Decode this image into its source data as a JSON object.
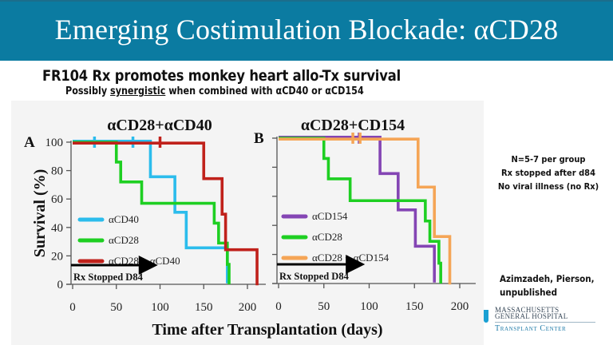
{
  "slide": {
    "title": "Emerging Costimulation Blockade: αCD28",
    "subtitle": "FR104 Rx promotes monkey heart allo-Tx survival",
    "subsub_prefix": "Possibly ",
    "subsub_emph": "synergistic",
    "subsub_suffix": " when combined with αCD40 or αCD154",
    "notes": [
      "N=5-7 per group",
      "Rx stopped after d84",
      "No viral illness (no Rx)"
    ],
    "citation": [
      "Azimzadeh, Pierson,",
      "unpublished"
    ],
    "logo": {
      "line1": "MASSACHUSETTS",
      "line2": "GENERAL HOSPITAL",
      "line3": "Transplant Center"
    },
    "colors": {
      "header": "#0b7ba1",
      "panel_bg": "#f4f4f4"
    }
  },
  "chart_data": [
    {
      "type": "line",
      "subtype": "kaplan-meier-step",
      "panel_letter": "A",
      "title": "αCD28+αCD40",
      "xlabel": "Time after Transplantation (days)",
      "ylabel": "Survival (%)",
      "xlim": [
        0,
        200
      ],
      "ylim": [
        0,
        100
      ],
      "xticks": [
        0,
        50,
        100,
        150,
        200
      ],
      "yticks": [
        0,
        20,
        40,
        60,
        80,
        100
      ],
      "annotation": "Rx Stopped D84",
      "annotation_arrow_end_day": 92,
      "legend_position": "lower-left",
      "series": [
        {
          "name": "αCD40",
          "color": "#2bbcec",
          "steps": [
            [
              0,
              100
            ],
            [
              89,
              75
            ],
            [
              117,
              50
            ],
            [
              130,
              25
            ],
            [
              177,
              0
            ]
          ],
          "censored": [
            [
              25,
              100
            ],
            [
              69,
              100
            ]
          ]
        },
        {
          "name": "αCD28",
          "color": "#1ecf22",
          "steps": [
            [
              0,
              100
            ],
            [
              50,
              86
            ],
            [
              55,
              72
            ],
            [
              79,
              57
            ],
            [
              162,
              43
            ],
            [
              167,
              29
            ],
            [
              177,
              14
            ],
            [
              179,
              0
            ]
          ],
          "censored": []
        },
        {
          "name": "αCD28 + αCD40",
          "color": "#c0211b",
          "steps": [
            [
              0,
              100
            ],
            [
              150,
              75
            ],
            [
              171,
              50
            ],
            [
              175,
              25
            ],
            [
              211,
              0
            ]
          ],
          "censored": [
            [
              100,
              100
            ]
          ]
        }
      ]
    },
    {
      "type": "line",
      "subtype": "kaplan-meier-step",
      "panel_letter": "B",
      "title": "αCD28+CD154",
      "xlabel": "Time after Transplantation (days)",
      "ylabel": "Survival (%)",
      "xlim": [
        0,
        200
      ],
      "ylim": [
        0,
        100
      ],
      "xticks": [
        0,
        50,
        100,
        150,
        200
      ],
      "yticks": [
        0,
        20,
        40,
        60,
        80,
        100
      ],
      "annotation": "Rx Stopped D84",
      "annotation_arrow_end_day": 90,
      "legend_position": "lower-left",
      "series": [
        {
          "name": "αCD154",
          "color": "#8445b4",
          "steps": [
            [
              0,
              100
            ],
            [
              112,
              75
            ],
            [
              132,
              50
            ],
            [
              151,
              25
            ],
            [
              172,
              0
            ]
          ],
          "censored": [
            [
              89,
              100
            ]
          ]
        },
        {
          "name": "αCD28",
          "color": "#1ecf22",
          "steps": [
            [
              0,
              100
            ],
            [
              50,
              86
            ],
            [
              55,
              72
            ],
            [
              79,
              57
            ],
            [
              162,
              43
            ],
            [
              167,
              29
            ],
            [
              177,
              14
            ],
            [
              179,
              0
            ]
          ],
          "censored": []
        },
        {
          "name": "αCD28 + αCD154",
          "color": "#f5a556",
          "steps": [
            [
              0,
              100
            ],
            [
              154,
              67
            ],
            [
              172,
              33
            ],
            [
              189,
              0
            ]
          ],
          "censored": [
            [
              82,
              100
            ],
            [
              90,
              100
            ]
          ]
        }
      ]
    }
  ]
}
